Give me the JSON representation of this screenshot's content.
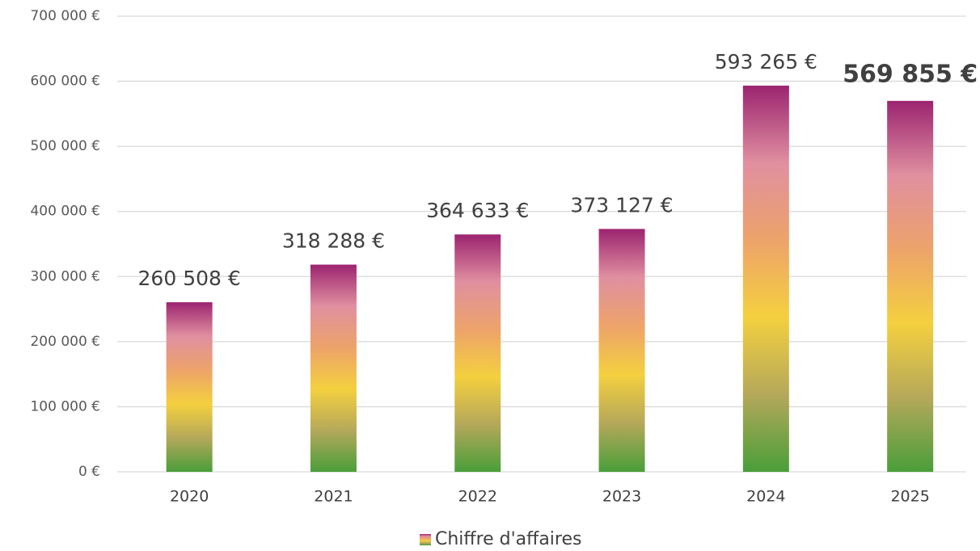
{
  "chart_data": {
    "type": "bar",
    "categories": [
      "2020",
      "2021",
      "2022",
      "2023",
      "2024",
      "2025"
    ],
    "series": [
      {
        "name": "Chiffre d'affaires",
        "gradient": [
          "#4a9e3a",
          "#b5a85a",
          "#f4d03f",
          "#eda36a",
          "#e08fa0",
          "#9c2470"
        ],
        "values": [
          260508,
          318288,
          364633,
          373127,
          593265,
          569855
        ],
        "value_labels": [
          "260 508 €",
          "318 288 €",
          "364 633 €",
          "373 127 €",
          "593 265 €",
          "569 855 €"
        ]
      }
    ],
    "ylim": [
      0,
      700000
    ],
    "yticks": [
      {
        "value": 0,
        "label": "0 €"
      },
      {
        "value": 100000,
        "label": "100 000 €"
      },
      {
        "value": 200000,
        "label": "200 000 €"
      },
      {
        "value": 300000,
        "label": "300 000 €"
      },
      {
        "value": 400000,
        "label": "400 000 €"
      },
      {
        "value": 500000,
        "label": "500 000 €"
      },
      {
        "value": 600000,
        "label": "600 000 €"
      },
      {
        "value": 700000,
        "label": "700 000 €"
      }
    ],
    "grid": true,
    "legend": "bottom"
  }
}
